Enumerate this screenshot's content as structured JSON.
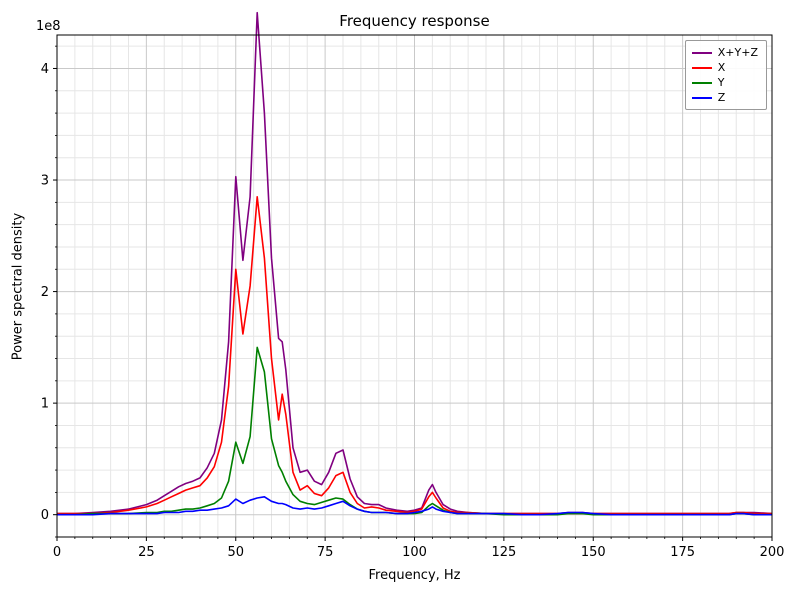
{
  "chart_data": {
    "type": "line",
    "title": "Frequency response",
    "xlabel": "Frequency, Hz",
    "ylabel": "Power spectral density",
    "offset_text": "1e8",
    "values_unit": "1e8",
    "grid": true,
    "legend_position": "upper right",
    "xlim": [
      0,
      200
    ],
    "ylim": [
      -0.2,
      4.3
    ],
    "x_ticks": [
      0,
      25,
      50,
      75,
      100,
      125,
      150,
      175,
      200
    ],
    "y_ticks": [
      0,
      1,
      2,
      3,
      4
    ],
    "x_minor_step": 5,
    "y_minor_step": 0.2,
    "x": [
      0,
      5,
      10,
      15,
      20,
      25,
      28,
      30,
      32,
      34,
      36,
      38,
      40,
      42,
      44,
      46,
      48,
      50,
      52,
      54,
      56,
      58,
      60,
      62,
      63,
      64,
      66,
      68,
      70,
      72,
      74,
      76,
      78,
      80,
      82,
      84,
      86,
      88,
      90,
      92,
      95,
      98,
      100,
      102,
      104,
      105,
      106,
      108,
      110,
      112,
      115,
      120,
      125,
      130,
      135,
      140,
      143,
      145,
      147,
      150,
      155,
      160,
      165,
      170,
      175,
      180,
      185,
      188,
      190,
      192,
      195,
      200
    ],
    "series": [
      {
        "name": "X+Y+Z",
        "color": "#800080",
        "values": [
          0.01,
          0.01,
          0.02,
          0.03,
          0.05,
          0.09,
          0.13,
          0.17,
          0.21,
          0.25,
          0.28,
          0.3,
          0.33,
          0.42,
          0.55,
          0.85,
          1.55,
          3.03,
          2.28,
          2.85,
          4.5,
          3.6,
          2.3,
          1.58,
          1.55,
          1.3,
          0.6,
          0.38,
          0.4,
          0.3,
          0.27,
          0.38,
          0.55,
          0.58,
          0.32,
          0.16,
          0.1,
          0.09,
          0.09,
          0.06,
          0.04,
          0.03,
          0.04,
          0.06,
          0.22,
          0.27,
          0.2,
          0.09,
          0.05,
          0.03,
          0.02,
          0.01,
          0.01,
          0.01,
          0.01,
          0.01,
          0.02,
          0.02,
          0.02,
          0.01,
          0.01,
          0.01,
          0.01,
          0.01,
          0.01,
          0.01,
          0.01,
          0.01,
          0.02,
          0.02,
          0.02,
          0.01
        ]
      },
      {
        "name": "X",
        "color": "#ff0000",
        "values": [
          0.01,
          0.01,
          0.01,
          0.02,
          0.04,
          0.07,
          0.1,
          0.13,
          0.16,
          0.19,
          0.22,
          0.24,
          0.26,
          0.33,
          0.43,
          0.65,
          1.15,
          2.2,
          1.62,
          2.05,
          2.85,
          2.3,
          1.4,
          0.85,
          1.08,
          0.9,
          0.38,
          0.22,
          0.26,
          0.19,
          0.17,
          0.24,
          0.35,
          0.38,
          0.2,
          0.1,
          0.06,
          0.07,
          0.06,
          0.04,
          0.03,
          0.02,
          0.03,
          0.05,
          0.16,
          0.2,
          0.15,
          0.06,
          0.03,
          0.02,
          0.02,
          0.01,
          0.01,
          0.01,
          0.01,
          0.01,
          0.01,
          0.01,
          0.01,
          0.01,
          0.01,
          0.01,
          0.01,
          0.01,
          0.01,
          0.01,
          0.01,
          0.01,
          0.02,
          0.02,
          0.01,
          0.01
        ]
      },
      {
        "name": "Y",
        "color": "#008000",
        "values": [
          0.0,
          0.0,
          0.01,
          0.01,
          0.01,
          0.02,
          0.02,
          0.03,
          0.03,
          0.04,
          0.05,
          0.05,
          0.06,
          0.08,
          0.1,
          0.15,
          0.3,
          0.65,
          0.46,
          0.7,
          1.5,
          1.28,
          0.68,
          0.44,
          0.38,
          0.3,
          0.18,
          0.12,
          0.1,
          0.09,
          0.11,
          0.13,
          0.15,
          0.14,
          0.09,
          0.05,
          0.03,
          0.02,
          0.02,
          0.02,
          0.01,
          0.01,
          0.01,
          0.02,
          0.08,
          0.1,
          0.08,
          0.04,
          0.02,
          0.01,
          0.01,
          0.01,
          0.0,
          0.0,
          0.0,
          0.0,
          0.01,
          0.01,
          0.01,
          0.0,
          0.0,
          0.0,
          0.0,
          0.0,
          0.0,
          0.0,
          0.0,
          0.0,
          0.01,
          0.01,
          0.0,
          0.0
        ]
      },
      {
        "name": "Z",
        "color": "#0000ff",
        "values": [
          0.0,
          0.0,
          0.0,
          0.01,
          0.01,
          0.01,
          0.01,
          0.02,
          0.02,
          0.02,
          0.03,
          0.03,
          0.04,
          0.04,
          0.05,
          0.06,
          0.08,
          0.14,
          0.1,
          0.13,
          0.15,
          0.16,
          0.12,
          0.1,
          0.1,
          0.09,
          0.06,
          0.05,
          0.06,
          0.05,
          0.06,
          0.08,
          0.1,
          0.12,
          0.08,
          0.05,
          0.03,
          0.02,
          0.02,
          0.02,
          0.01,
          0.01,
          0.02,
          0.03,
          0.05,
          0.07,
          0.05,
          0.03,
          0.02,
          0.01,
          0.01,
          0.01,
          0.01,
          0.0,
          0.0,
          0.01,
          0.02,
          0.02,
          0.02,
          0.01,
          0.0,
          0.0,
          0.0,
          0.0,
          0.0,
          0.0,
          0.0,
          0.0,
          0.01,
          0.01,
          0.0,
          0.0
        ]
      }
    ]
  }
}
